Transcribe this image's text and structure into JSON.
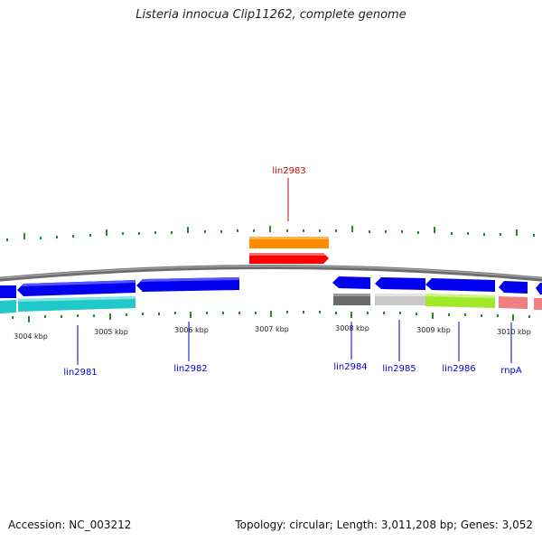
{
  "title": "Listeria innocua Clip11262, complete genome",
  "footer": {
    "accession": "Accession: NC_003212",
    "summary": "Topology: circular; Length: 3,011,208 bp; Genes: 3,052"
  },
  "colors": {
    "backbone": "#808080",
    "tick": "#228b22",
    "forward_gene": "#ff0000",
    "reverse_gene": "#0000ff",
    "label_default": "#0000cc",
    "label_highlight": "#cc0000"
  },
  "kbp_labels": [
    "3004 kbp",
    "3005 kbp",
    "3006 kbp",
    "3007 kbp",
    "3008 kbp",
    "3009 kbp",
    "3010 kbp"
  ],
  "gene_labels": [
    {
      "text": "lin2981",
      "color": "#0000cc"
    },
    {
      "text": "lin2982",
      "color": "#0000cc"
    },
    {
      "text": "lin2983",
      "color": "#cc0000"
    },
    {
      "text": "lin2984",
      "color": "#0000cc"
    },
    {
      "text": "lin2985",
      "color": "#0000cc"
    },
    {
      "text": "lin2986",
      "color": "#0000cc"
    },
    {
      "text": "rnpA",
      "color": "#0000cc"
    }
  ]
}
